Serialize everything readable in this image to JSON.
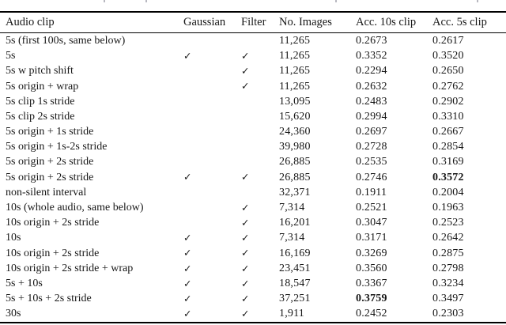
{
  "checkmark": "✓",
  "table": {
    "columns": [
      "Audio clip",
      "Gaussian",
      "Filter",
      "No. Images",
      "Acc. 10s clip",
      "Acc. 5s clip"
    ],
    "rows": [
      {
        "label": "5s (first 100s, same below)",
        "gaussian": false,
        "filter": false,
        "images": "11,265",
        "acc_10s": "0.2673",
        "acc_5s": "0.2617",
        "bold": null
      },
      {
        "label": "5s",
        "gaussian": true,
        "filter": true,
        "images": "11,265",
        "acc_10s": "0.3352",
        "acc_5s": "0.3520",
        "bold": null
      },
      {
        "label": "5s w pitch shift",
        "gaussian": false,
        "filter": true,
        "images": "11,265",
        "acc_10s": "0.2294",
        "acc_5s": "0.2650",
        "bold": null
      },
      {
        "label": "5s origin + wrap",
        "gaussian": false,
        "filter": true,
        "images": "11,265",
        "acc_10s": "0.2632",
        "acc_5s": "0.2762",
        "bold": null
      },
      {
        "label": "5s clip 1s stride",
        "gaussian": false,
        "filter": false,
        "images": "13,095",
        "acc_10s": "0.2483",
        "acc_5s": "0.2902",
        "bold": null
      },
      {
        "label": "5s clip 2s stride",
        "gaussian": false,
        "filter": false,
        "images": "15,620",
        "acc_10s": "0.2994",
        "acc_5s": "0.3310",
        "bold": null
      },
      {
        "label": "5s origin + 1s stride",
        "gaussian": false,
        "filter": false,
        "images": "24,360",
        "acc_10s": "0.2697",
        "acc_5s": "0.2667",
        "bold": null
      },
      {
        "label": "5s origin + 1s-2s stride",
        "gaussian": false,
        "filter": false,
        "images": "39,980",
        "acc_10s": "0.2728",
        "acc_5s": "0.2854",
        "bold": null
      },
      {
        "label": "5s origin + 2s stride",
        "gaussian": false,
        "filter": false,
        "images": "26,885",
        "acc_10s": "0.2535",
        "acc_5s": "0.3169",
        "bold": null
      },
      {
        "label": "5s origin + 2s stride",
        "gaussian": true,
        "filter": true,
        "images": "26,885",
        "acc_10s": "0.2746",
        "acc_5s": "0.3572",
        "bold": "acc_5s"
      },
      {
        "label": "non-silent interval",
        "gaussian": false,
        "filter": false,
        "images": "32,371",
        "acc_10s": "0.1911",
        "acc_5s": "0.2004",
        "bold": null
      },
      {
        "label": "10s (whole audio, same below)",
        "gaussian": false,
        "filter": true,
        "images": "7,314",
        "acc_10s": "0.2521",
        "acc_5s": "0.1963",
        "bold": null
      },
      {
        "label": "10s origin + 2s stride",
        "gaussian": false,
        "filter": true,
        "images": "16,201",
        "acc_10s": "0.3047",
        "acc_5s": "0.2523",
        "bold": null
      },
      {
        "label": "10s",
        "gaussian": true,
        "filter": true,
        "images": "7,314",
        "acc_10s": "0.3171",
        "acc_5s": "0.2642",
        "bold": null
      },
      {
        "label": "10s origin + 2s stride",
        "gaussian": true,
        "filter": true,
        "images": "16,169",
        "acc_10s": "0.3269",
        "acc_5s": "0.2875",
        "bold": null
      },
      {
        "label": "10s origin + 2s stride + wrap",
        "gaussian": true,
        "filter": true,
        "images": "23,451",
        "acc_10s": "0.3560",
        "acc_5s": "0.2798",
        "bold": null
      },
      {
        "label": "5s + 10s",
        "gaussian": true,
        "filter": true,
        "images": "18,547",
        "acc_10s": "0.3367",
        "acc_5s": "0.3234",
        "bold": null
      },
      {
        "label": "5s + 10s + 2s stride",
        "gaussian": true,
        "filter": true,
        "images": "37,251",
        "acc_10s": "0.3759",
        "acc_5s": "0.3497",
        "bold": "acc_10s"
      },
      {
        "label": "30s",
        "gaussian": true,
        "filter": true,
        "images": "1,911",
        "acc_10s": "0.2452",
        "acc_5s": "0.2303",
        "bold": null
      }
    ]
  }
}
